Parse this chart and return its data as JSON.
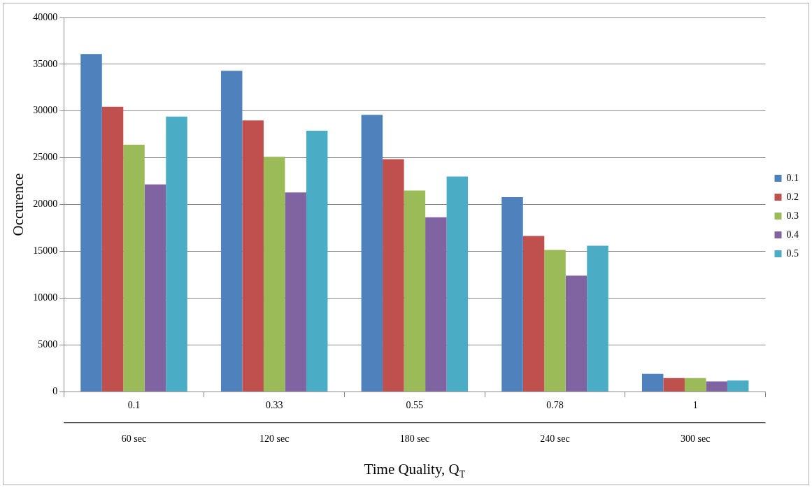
{
  "chart_data": {
    "type": "bar",
    "categories": [
      "0.1",
      "0.33",
      "0.55",
      "0.78",
      "1"
    ],
    "xlabel": "Time Quality, Q$_{T}$",
    "ylabel": "Occurence",
    "series": [
      {
        "name": "0.1",
        "color": "#4f81bd",
        "values": [
          36100,
          34300,
          29600,
          20800,
          1900
        ]
      },
      {
        "name": "0.2",
        "color": "#c0504d",
        "values": [
          30450,
          29000,
          24850,
          16650,
          1450
        ]
      },
      {
        "name": "0.3",
        "color": "#9bbb59",
        "values": [
          26400,
          25100,
          21500,
          15150,
          1450
        ]
      },
      {
        "name": "0.4",
        "color": "#8064a2",
        "values": [
          22150,
          21300,
          18650,
          12400,
          1100
        ]
      },
      {
        "name": "0.5",
        "color": "#4bacc6",
        "values": [
          29400,
          27900,
          23000,
          15600,
          1200
        ]
      }
    ],
    "annotations": [
      "60 sec",
      "120 sec",
      "180 sec",
      "240 sec",
      "300 sec"
    ],
    "ylim": [
      0,
      40000
    ],
    "yticks": [
      0,
      5000,
      10000,
      15000,
      20000,
      25000,
      30000,
      35000,
      40000
    ],
    "grid": "y",
    "legend": "right"
  }
}
